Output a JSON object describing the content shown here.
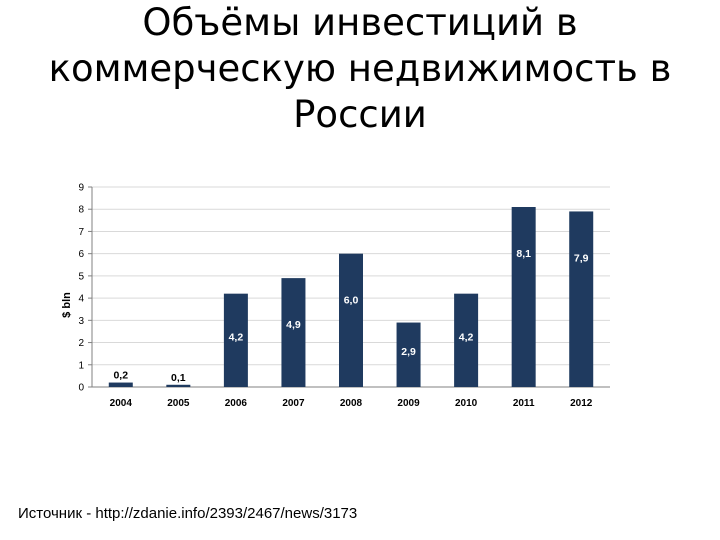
{
  "title": {
    "line1": "Объёмы инвестиций в",
    "line2": "коммерческую недвижимость в",
    "line3": "России"
  },
  "source": "Источник - http://zdanie.info/2393/2467/news/3173",
  "colors": {
    "bar": "#1f3a5f",
    "grid": "#d9d9d9",
    "label_inside": "#ffffff",
    "label_outside": "#000000"
  },
  "chart_data": {
    "type": "bar",
    "title": "",
    "xlabel": "",
    "ylabel": "$ bln",
    "categories": [
      "2004",
      "2005",
      "2006",
      "2007",
      "2008",
      "2009",
      "2010",
      "2011",
      "2012"
    ],
    "values": [
      0.2,
      0.1,
      4.2,
      4.9,
      6.0,
      2.9,
      4.2,
      8.1,
      7.9
    ],
    "data_labels": [
      "0,2",
      "0,1",
      "4,2",
      "4,9",
      "6,0",
      "2,9",
      "4,2",
      "8,1",
      "7,9"
    ],
    "yticks": [
      "0",
      "1",
      "2",
      "3",
      "4",
      "5",
      "6",
      "7",
      "8",
      "9"
    ],
    "ylim": [
      0,
      9
    ],
    "grid": true,
    "legend": "none"
  }
}
